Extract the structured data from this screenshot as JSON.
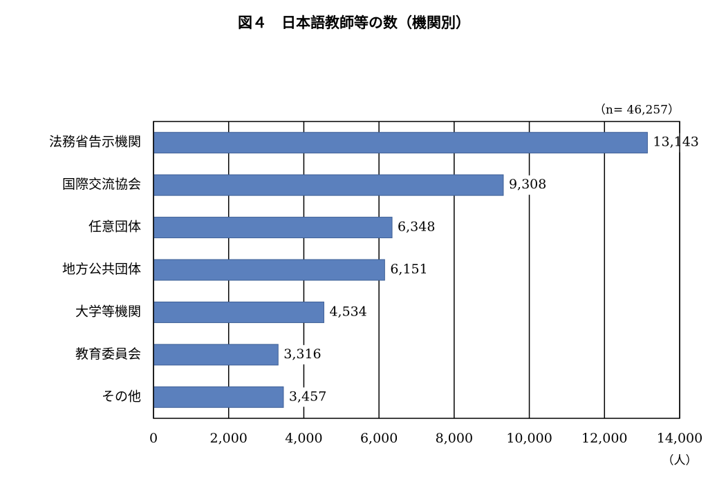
{
  "chart_data": {
    "type": "bar",
    "orientation": "horizontal",
    "title": "図４　日本語教師等の数（機関別）",
    "annotation": "（n= 46,257）",
    "x_unit": "（人）",
    "categories": [
      "法務省告示機関",
      "国際交流協会",
      "任意団体",
      "地方公共団体",
      "大学等機関",
      "教育委員会",
      "その他"
    ],
    "values": [
      13143,
      9308,
      6348,
      6151,
      4534,
      3316,
      3457
    ],
    "value_labels": [
      "13,143",
      "9,308",
      "6,348",
      "6,151",
      "4,534",
      "3,316",
      "3,457"
    ],
    "color": "#5b80bd",
    "xlim": [
      0,
      14000
    ],
    "xticks": [
      0,
      {
        "value": 2000,
        "label": "2,000"
      },
      {
        "value": 4000,
        "label": "4,000"
      },
      {
        "value": 6000,
        "label": "6,000"
      },
      {
        "value": 8000,
        "label": "8,000"
      },
      {
        "value": 10000,
        "label": "10,000"
      },
      {
        "value": 12000,
        "label": "12,000"
      },
      {
        "value": 14000,
        "label": "14,000"
      }
    ],
    "grid": true
  }
}
